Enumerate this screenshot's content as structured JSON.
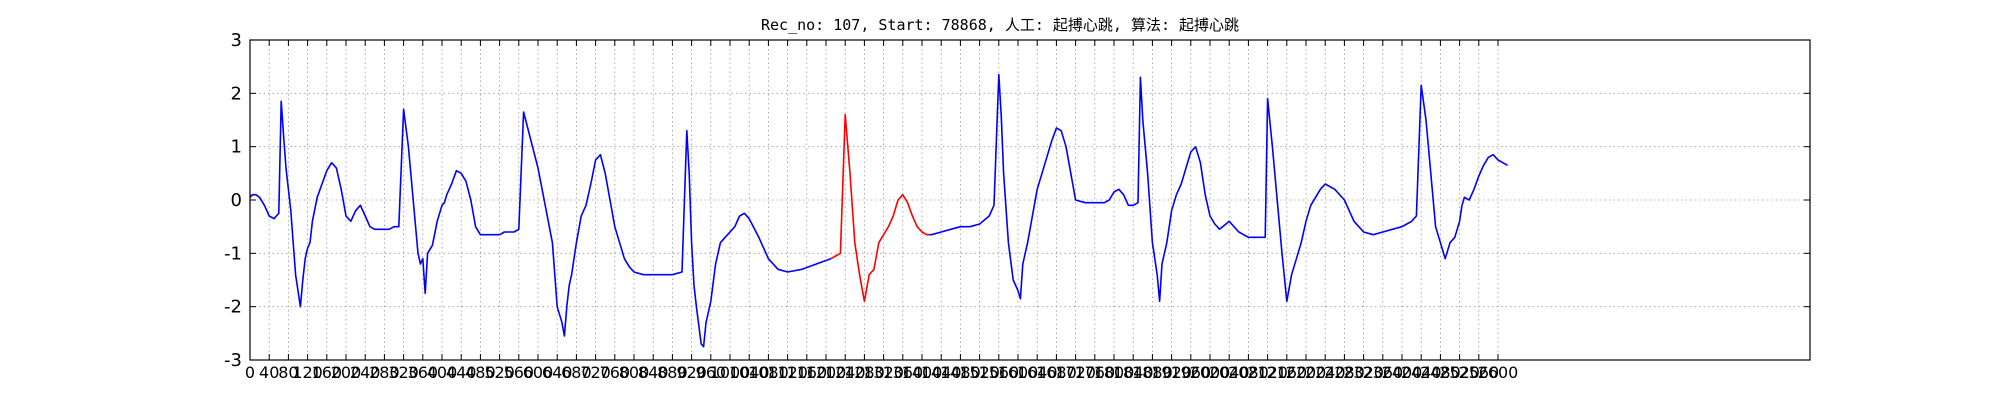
{
  "chart_data": {
    "type": "line",
    "title": "Rec_no: 107, Start: 78868, 人工: 起搏心跳, 算法: 起搏心跳",
    "xlabel": "",
    "ylabel": "",
    "xlim": [
      0,
      3250
    ],
    "ylim": [
      -3,
      3
    ],
    "grid": true,
    "y_ticks": [
      3,
      2,
      1,
      0,
      -1,
      -2,
      -3
    ],
    "x_ticks": [
      0,
      40,
      80,
      120,
      160,
      200,
      240,
      280,
      320,
      360,
      400,
      440,
      480,
      520,
      560,
      600,
      640,
      680,
      720,
      760,
      800,
      840,
      880,
      920,
      960,
      1000,
      1040,
      1080,
      1120,
      1160,
      1200,
      1240,
      1280,
      1320,
      1360,
      1400,
      1440,
      1480,
      1520,
      1560,
      1600,
      1640,
      1680,
      1720,
      1760,
      1800,
      1840,
      1880,
      1920,
      1960,
      2000,
      2040,
      2080,
      2120,
      2160,
      2200,
      2240,
      2280,
      2320,
      2360,
      2400,
      2440,
      2480,
      2520,
      2560,
      2600
    ],
    "x_tick_labels": [
      "0",
      "40",
      "80",
      "120",
      "160",
      "200",
      "240",
      "280",
      "320",
      "360",
      "400",
      "440",
      "480",
      "520",
      "560",
      "600",
      "640",
      "680",
      "720",
      "760",
      "800",
      "840",
      "880",
      "920",
      "960",
      "1000",
      "1040",
      "1080",
      "1120",
      "1160",
      "1200",
      "1240",
      "1280",
      "1320",
      "1360",
      "1400",
      "1440",
      "1480",
      "1520",
      "1560",
      "1600",
      "1640",
      "1680",
      "1720",
      "1760",
      "1800",
      "1840",
      "1880",
      "1920",
      "1960",
      "2000",
      "2040",
      "2080",
      "2120",
      "2160",
      "2200",
      "2240",
      "2280",
      "2320",
      "2360",
      "2400",
      "2440",
      "2480",
      "2520",
      "2560",
      "2600"
    ],
    "series": [
      {
        "color": "#0000ff",
        "x": [
          0,
          5,
          12,
          20,
          30,
          40,
          50,
          55,
          60,
          65,
          70,
          75,
          85,
          95,
          105,
          110,
          115,
          120,
          125,
          130,
          140,
          150,
          160,
          170,
          180,
          190,
          200,
          210,
          220,
          230,
          240,
          250,
          260,
          265,
          270,
          280,
          290,
          300,
          310,
          320,
          330,
          350,
          355,
          360,
          365,
          370,
          380,
          390,
          400,
          405,
          410,
          420,
          430,
          440,
          450,
          460,
          470,
          480,
          490,
          500,
          510,
          520,
          530,
          540,
          550,
          560,
          570,
          600,
          630,
          640,
          650,
          655,
          660,
          665,
          670,
          680,
          690,
          700,
          710,
          720,
          730,
          740,
          750,
          760,
          770,
          780,
          790,
          800,
          820,
          840,
          860,
          880,
          900,
          910,
          915,
          920,
          925,
          930,
          940,
          945,
          950,
          960,
          970,
          980,
          990,
          1000,
          1010,
          1020,
          1030,
          1040,
          1060,
          1080,
          1100,
          1120,
          1150,
          1180,
          1210
        ],
        "y": [
          0.05,
          0.1,
          0.1,
          0.05,
          -0.1,
          -0.3,
          -0.35,
          -0.3,
          -0.25,
          1.85,
          1.2,
          0.6,
          -0.2,
          -1.4,
          -2.0,
          -1.5,
          -1.1,
          -0.9,
          -0.8,
          -0.4,
          0.05,
          0.3,
          0.55,
          0.7,
          0.6,
          0.2,
          -0.3,
          -0.4,
          -0.2,
          -0.1,
          -0.3,
          -0.5,
          -0.55,
          -0.55,
          -0.55,
          -0.55,
          -0.55,
          -0.5,
          -0.5,
          1.7,
          1.0,
          -1.0,
          -1.2,
          -1.1,
          -1.75,
          -1.0,
          -0.85,
          -0.4,
          -0.1,
          -0.05,
          0.1,
          0.3,
          0.55,
          0.5,
          0.35,
          0.0,
          -0.5,
          -0.65,
          -0.65,
          -0.65,
          -0.65,
          -0.65,
          -0.6,
          -0.6,
          -0.6,
          -0.55,
          1.65,
          0.6,
          -0.8,
          -2.0,
          -2.3,
          -2.55,
          -2.0,
          -1.6,
          -1.4,
          -0.8,
          -0.3,
          -0.1,
          0.3,
          0.75,
          0.85,
          0.5,
          0.0,
          -0.5,
          -0.8,
          -1.1,
          -1.25,
          -1.35,
          -1.4,
          -1.4,
          -1.4,
          -1.4,
          -1.35,
          1.3,
          0.5,
          -0.8,
          -1.6,
          -2.0,
          -2.7,
          -2.75,
          -2.3,
          -1.9,
          -1.2,
          -0.8,
          -0.7,
          -0.6,
          -0.5,
          -0.3,
          -0.25,
          -0.35,
          -0.7,
          -1.1,
          -1.3,
          -1.35,
          -1.3,
          -1.2,
          -1.1
        ]
      },
      {
        "color": "#ff0000",
        "x": [
          1210,
          1220,
          1230,
          1240,
          1250,
          1260,
          1270,
          1280,
          1290,
          1300,
          1310,
          1320,
          1330,
          1340,
          1350,
          1360,
          1370,
          1380,
          1390,
          1400,
          1410,
          1415
        ],
        "y": [
          -1.1,
          -1.05,
          -1.0,
          1.6,
          0.5,
          -0.8,
          -1.4,
          -1.9,
          -1.4,
          -1.3,
          -0.8,
          -0.65,
          -0.5,
          -0.3,
          0.0,
          0.1,
          -0.05,
          -0.3,
          -0.5,
          -0.6,
          -0.65,
          -0.65
        ]
      },
      {
        "color": "#0000ff",
        "x": [
          1415,
          1420,
          1440,
          1460,
          1480,
          1500,
          1520,
          1540,
          1550,
          1560,
          1565,
          1570,
          1580,
          1590,
          1600,
          1605,
          1610,
          1620,
          1630,
          1640,
          1650,
          1660,
          1670,
          1680,
          1690,
          1700,
          1710,
          1720,
          1740,
          1760,
          1780,
          1790,
          1800,
          1810,
          1820,
          1830,
          1840,
          1850,
          1855,
          1860,
          1870,
          1880,
          1890,
          1895,
          1900,
          1910,
          1920,
          1930,
          1940,
          1950,
          1960,
          1970,
          1980,
          1990,
          2000,
          2010,
          2020,
          2040,
          2060,
          2080,
          2100,
          2110,
          2115,
          2120,
          2130,
          2140,
          2150,
          2160,
          2170,
          2180,
          2190,
          2200,
          2210,
          2220,
          2230,
          2240,
          2260,
          2280,
          2300,
          2320,
          2340,
          2360,
          2380,
          2400,
          2410,
          2420,
          2430,
          2440,
          2450,
          2460,
          2470,
          2480,
          2490,
          2500,
          2510,
          2520,
          2525
        ],
        "y": [
          -0.65,
          -0.65,
          -0.6,
          -0.55,
          -0.5,
          -0.5,
          -0.45,
          -0.3,
          -0.1,
          2.35,
          1.6,
          0.5,
          -0.8,
          -1.5,
          -1.7,
          -1.85,
          -1.2,
          -0.8,
          -0.3,
          0.2,
          0.5,
          0.8,
          1.1,
          1.35,
          1.3,
          1.0,
          0.5,
          0.0,
          -0.05,
          -0.05,
          -0.05,
          0.0,
          0.15,
          0.2,
          0.1,
          -0.1,
          -0.1,
          -0.05,
          2.3,
          1.5,
          0.5,
          -0.8,
          -1.4,
          -1.9,
          -1.2,
          -0.8,
          -0.2,
          0.1,
          0.3,
          0.6,
          0.9,
          1.0,
          0.7,
          0.1,
          -0.3,
          -0.45,
          -0.55,
          -0.4,
          -0.6,
          -0.7,
          -0.7,
          -0.7,
          -0.7,
          1.9,
          1.0,
          0.0,
          -1.0,
          -1.9,
          -1.4,
          -1.1,
          -0.8,
          -0.4,
          -0.1,
          0.05,
          0.2,
          0.3,
          0.2,
          0.0,
          -0.4,
          -0.6,
          -0.65,
          -0.6,
          -0.55,
          -0.5,
          -0.45,
          -0.4,
          -0.3,
          2.15,
          1.5,
          0.5,
          -0.5,
          -0.8,
          -1.1,
          -0.8,
          -0.7,
          -0.4,
          -0.1
        ]
      },
      {
        "color": "#0000ff",
        "x": [
          2525,
          2530,
          2540,
          2550,
          2560,
          2570,
          2580,
          2590,
          2600,
          2610,
          2620
        ],
        "y": [
          -0.1,
          0.05,
          0.0,
          0.2,
          0.45,
          0.65,
          0.8,
          0.85,
          0.75,
          0.7,
          0.65
        ]
      }
    ]
  }
}
